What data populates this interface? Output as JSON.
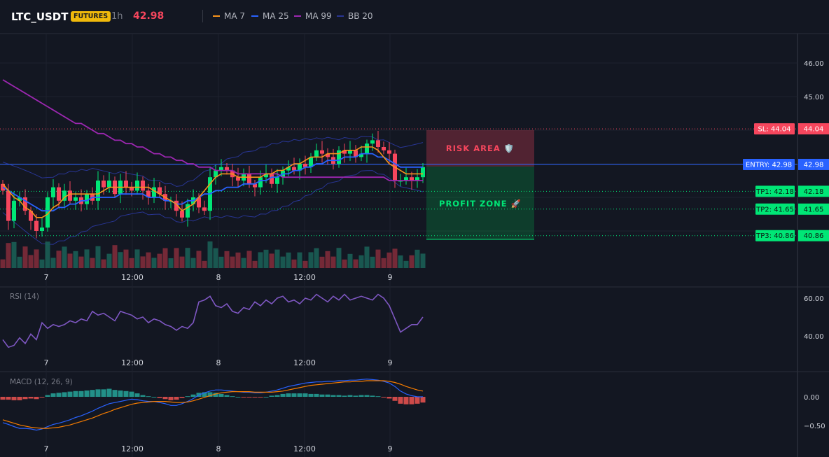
{
  "header": {
    "symbol": "LTC_USDT",
    "badge": "FUTURES",
    "timeframe": "1h",
    "last_price": "42.98",
    "legend": [
      {
        "name": "MA 7",
        "color": "#f7931a"
      },
      {
        "name": "MA 25",
        "color": "#2962ff"
      },
      {
        "name": "MA 99",
        "color": "#9c27b0"
      },
      {
        "name": "BB 20",
        "color": "#283593"
      }
    ]
  },
  "colors": {
    "up": "#26a69a",
    "up_bright": "#00e676",
    "down": "#f6465d",
    "bg": "#131722"
  },
  "levels": {
    "sl": {
      "label": "SL: 44.04",
      "axis": "44.04",
      "value": 44.04
    },
    "entry": {
      "label": "ENTRY: 42.98",
      "axis": "42.98",
      "value": 42.98
    },
    "tp1": {
      "label": "TP1: 42.18",
      "axis": "42.18",
      "value": 42.18
    },
    "tp2": {
      "label": "TP2: 41.65",
      "axis": "41.65",
      "value": 41.65
    },
    "tp3": {
      "label": "TP3: 40.86",
      "axis": "40.86",
      "value": 40.86
    }
  },
  "zones": {
    "risk_label": "RISK AREA 🛡️",
    "profit_label": "PROFIT ZONE 🚀"
  },
  "rsi_title": "RSI (14)",
  "macd_title": "MACD (12, 26, 9)",
  "chart_data": [
    {
      "type": "candlestick",
      "x_ticks": [
        "7",
        "12:00",
        "8",
        "12:00",
        "9"
      ],
      "y_ticks": [
        "46.00",
        "45.00"
      ],
      "ylim": [
        40.6,
        46.6
      ],
      "candles_close": [
        42.2,
        41.3,
        41.9,
        42.0,
        41.6,
        41.3,
        41.0,
        41.1,
        42.0,
        42.3,
        41.9,
        42.2,
        41.9,
        42.0,
        41.8,
        42.1,
        41.9,
        42.5,
        42.3,
        42.5,
        42.1,
        42.5,
        42.3,
        42.2,
        42.5,
        42.2,
        42.0,
        42.3,
        42.1,
        41.9,
        41.9,
        41.6,
        41.4,
        41.8,
        42.0,
        41.7,
        41.6,
        42.6,
        42.8,
        42.9,
        42.8,
        42.6,
        42.5,
        42.7,
        42.4,
        42.3,
        42.6,
        42.7,
        42.4,
        42.6,
        42.8,
        42.9,
        42.8,
        43.0,
        42.9,
        43.2,
        43.4,
        43.3,
        43.2,
        43.0,
        43.4,
        43.3,
        43.4,
        43.2,
        43.3,
        43.6,
        43.7,
        43.5,
        43.4,
        43.3,
        42.5,
        42.5,
        42.6,
        42.5,
        42.6,
        42.9
      ],
      "ma7": [
        42.4,
        42.2,
        42.0,
        41.9,
        41.7,
        41.6,
        41.4,
        41.4,
        41.5,
        41.7,
        41.8,
        42.0,
        42.1,
        42.1,
        42.1,
        42.1,
        42.1,
        42.1,
        42.2,
        42.3,
        42.3,
        42.3,
        42.3,
        42.3,
        42.3,
        42.3,
        42.3,
        42.2,
        42.1,
        42.0,
        41.9,
        41.8,
        41.6,
        41.7,
        41.8,
        42.0,
        42.2,
        42.4,
        42.6,
        42.7,
        42.7,
        42.7,
        42.6,
        42.6,
        42.6,
        42.6,
        42.6,
        42.7,
        42.7,
        42.8,
        42.8,
        42.9,
        43.0,
        43.0,
        43.1,
        43.2,
        43.2,
        43.2,
        43.3,
        43.3,
        43.3,
        43.4,
        43.4,
        43.4,
        43.5,
        43.5,
        43.5,
        43.4,
        43.2,
        43.0,
        42.9,
        42.8,
        42.7,
        42.7,
        42.7,
        42.7
      ],
      "ma25": [
        42.3,
        42.2,
        42.1,
        42.0,
        41.9,
        41.8,
        41.7,
        41.6,
        41.6,
        41.6,
        41.7,
        41.7,
        41.8,
        41.8,
        41.9,
        41.9,
        42.0,
        42.0,
        42.0,
        42.0,
        42.0,
        42.1,
        42.1,
        42.1,
        42.1,
        42.1,
        42.0,
        42.0,
        42.0,
        41.9,
        41.9,
        41.8,
        41.8,
        41.9,
        41.9,
        42.0,
        42.1,
        42.1,
        42.2,
        42.2,
        42.3,
        42.3,
        42.3,
        42.4,
        42.4,
        42.4,
        42.5,
        42.5,
        42.6,
        42.6,
        42.7,
        42.7,
        42.8,
        42.8,
        42.9,
        42.9,
        43.0,
        43.0,
        43.1,
        43.1,
        43.1,
        43.2,
        43.2,
        43.2,
        43.3,
        43.3,
        43.3,
        43.2,
        43.2,
        43.1,
        43.0,
        42.9,
        42.9,
        42.9,
        42.9,
        42.9
      ],
      "ma99": [
        45.5,
        45.4,
        45.3,
        45.2,
        45.1,
        45.0,
        44.9,
        44.8,
        44.7,
        44.6,
        44.5,
        44.4,
        44.3,
        44.2,
        44.2,
        44.1,
        44.0,
        43.9,
        43.9,
        43.8,
        43.7,
        43.7,
        43.6,
        43.6,
        43.5,
        43.5,
        43.4,
        43.3,
        43.3,
        43.2,
        43.2,
        43.1,
        43.1,
        43.0,
        43.0,
        42.9,
        42.9,
        42.9,
        42.8,
        42.8,
        42.8,
        42.8,
        42.7,
        42.7,
        42.7,
        42.7,
        42.7,
        42.7,
        42.7,
        42.7,
        42.6,
        42.6,
        42.6,
        42.6,
        42.6,
        42.6,
        42.6,
        42.6,
        42.6,
        42.6,
        42.6,
        42.6,
        42.6,
        42.6,
        42.6,
        42.6,
        42.6,
        42.6,
        42.6,
        42.5,
        42.5,
        42.5,
        42.5,
        42.5,
        42.5,
        42.5
      ]
    },
    {
      "type": "line",
      "name": "RSI (14)",
      "y_ticks": [
        "60.00",
        "40.00"
      ],
      "ylim": [
        35,
        65
      ],
      "values": [
        38,
        34,
        35,
        39,
        36,
        41,
        38,
        47,
        44,
        46,
        45,
        46,
        48,
        47,
        49,
        48,
        53,
        51,
        52,
        50,
        48,
        53,
        52,
        51,
        49,
        50,
        47,
        49,
        48,
        46,
        45,
        43,
        45,
        44,
        47,
        58,
        59,
        61,
        56,
        55,
        57,
        53,
        52,
        55,
        54,
        58,
        56,
        59,
        57,
        60,
        61,
        58,
        59,
        57,
        60,
        59,
        62,
        60,
        58,
        61,
        59,
        62,
        59,
        60,
        61,
        60,
        59,
        62,
        60,
        56,
        49,
        42,
        44,
        46,
        46,
        50
      ]
    },
    {
      "type": "line",
      "name": "MACD (12, 26, 9)",
      "y_ticks": [
        "0.00",
        "−0.50"
      ],
      "ylim": [
        -0.7,
        0.45
      ],
      "macd": [
        -0.45,
        -0.48,
        -0.52,
        -0.55,
        -0.55,
        -0.56,
        -0.58,
        -0.56,
        -0.52,
        -0.48,
        -0.46,
        -0.43,
        -0.4,
        -0.36,
        -0.33,
        -0.29,
        -0.25,
        -0.2,
        -0.16,
        -0.12,
        -0.1,
        -0.08,
        -0.06,
        -0.04,
        -0.05,
        -0.07,
        -0.08,
        -0.08,
        -0.1,
        -0.12,
        -0.15,
        -0.15,
        -0.12,
        -0.08,
        -0.03,
        0.03,
        0.07,
        0.1,
        0.12,
        0.12,
        0.11,
        0.1,
        0.09,
        0.08,
        0.08,
        0.07,
        0.07,
        0.08,
        0.1,
        0.12,
        0.15,
        0.18,
        0.2,
        0.22,
        0.24,
        0.25,
        0.26,
        0.26,
        0.27,
        0.27,
        0.28,
        0.28,
        0.29,
        0.29,
        0.3,
        0.31,
        0.3,
        0.29,
        0.27,
        0.24,
        0.18,
        0.1,
        0.05,
        0.02,
        0.0,
        0.0
      ],
      "signal": [
        -0.4,
        -0.43,
        -0.46,
        -0.49,
        -0.51,
        -0.53,
        -0.54,
        -0.55,
        -0.55,
        -0.54,
        -0.53,
        -0.51,
        -0.49,
        -0.46,
        -0.43,
        -0.4,
        -0.37,
        -0.33,
        -0.29,
        -0.26,
        -0.22,
        -0.19,
        -0.16,
        -0.13,
        -0.11,
        -0.1,
        -0.09,
        -0.08,
        -0.08,
        -0.08,
        -0.09,
        -0.1,
        -0.1,
        -0.09,
        -0.07,
        -0.04,
        -0.01,
        0.02,
        0.05,
        0.07,
        0.08,
        0.09,
        0.09,
        0.09,
        0.09,
        0.08,
        0.08,
        0.08,
        0.08,
        0.09,
        0.1,
        0.12,
        0.14,
        0.16,
        0.18,
        0.2,
        0.21,
        0.22,
        0.23,
        0.24,
        0.25,
        0.26,
        0.26,
        0.27,
        0.27,
        0.28,
        0.28,
        0.28,
        0.28,
        0.27,
        0.25,
        0.22,
        0.18,
        0.15,
        0.12,
        0.1
      ]
    }
  ]
}
